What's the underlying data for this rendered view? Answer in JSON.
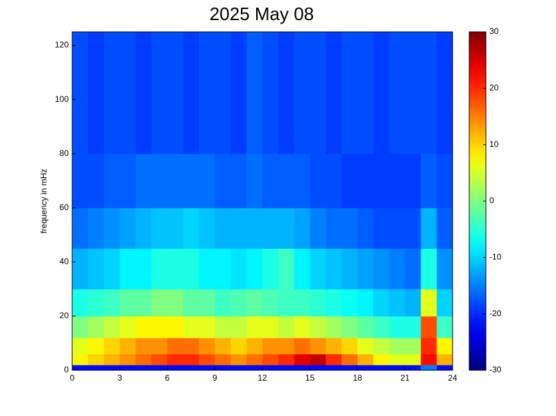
{
  "chart_data": {
    "type": "heatmap",
    "title": "2025 May 08",
    "y_label": "frequency in mHz",
    "xbins": [
      0,
      1,
      2,
      3,
      4,
      5,
      6,
      7,
      8,
      9,
      10,
      11,
      12,
      13,
      14,
      15,
      16,
      17,
      18,
      19,
      20,
      21,
      22,
      23,
      24
    ],
    "ybins": [
      0,
      2,
      6,
      12,
      20,
      30,
      45,
      60,
      80,
      125
    ],
    "z": [
      [
        -22,
        -22,
        -22,
        -22,
        -22,
        -22,
        -22,
        -22,
        -22,
        -22,
        -22,
        -22,
        -22,
        -22,
        -22,
        -22,
        -22,
        -22,
        -22,
        -22,
        -22,
        -22,
        -15,
        -22
      ],
      [
        8,
        10,
        12,
        14,
        16,
        18,
        20,
        20,
        18,
        16,
        14,
        16,
        18,
        20,
        24,
        26,
        20,
        16,
        12,
        8,
        6,
        6,
        22,
        12
      ],
      [
        6,
        8,
        10,
        12,
        14,
        14,
        16,
        16,
        14,
        12,
        10,
        12,
        14,
        14,
        16,
        14,
        12,
        10,
        6,
        4,
        2,
        2,
        20,
        8
      ],
      [
        0,
        2,
        4,
        6,
        8,
        8,
        8,
        6,
        6,
        4,
        4,
        6,
        6,
        4,
        6,
        4,
        2,
        0,
        -2,
        -4,
        -6,
        -6,
        18,
        -4
      ],
      [
        -6,
        -5,
        -4,
        -2,
        -2,
        0,
        0,
        -2,
        -2,
        -4,
        -3,
        -2,
        -3,
        -4,
        -4,
        -5,
        -6,
        -7,
        -8,
        -10,
        -11,
        -12,
        6,
        -10
      ],
      [
        -12,
        -11,
        -10,
        -8,
        -8,
        -6,
        -6,
        -6,
        -8,
        -8,
        -9,
        -8,
        -6,
        -4,
        -8,
        -10,
        -11,
        -12,
        -13,
        -14,
        -15,
        -16,
        -6,
        -14
      ],
      [
        -16,
        -15,
        -14,
        -13,
        -12,
        -11,
        -11,
        -10,
        -11,
        -12,
        -12,
        -12,
        -12,
        -12,
        -13,
        -15,
        -16,
        -16,
        -17,
        -18,
        -18,
        -18,
        -12,
        -17
      ],
      [
        -18,
        -18,
        -17,
        -17,
        -16,
        -16,
        -16,
        -16,
        -16,
        -17,
        -17,
        -16,
        -17,
        -17,
        -17,
        -18,
        -18,
        -19,
        -19,
        -19,
        -19,
        -19,
        -17,
        -18
      ],
      [
        -18,
        -19,
        -18,
        -18,
        -19,
        -18,
        -18,
        -19,
        -18,
        -18,
        -19,
        -17,
        -18,
        -19,
        -18,
        -18,
        -19,
        -18,
        -18,
        -19,
        -18,
        -18,
        -18,
        -19
      ]
    ],
    "xlim": [
      0,
      24
    ],
    "xticks": [
      0,
      3,
      6,
      9,
      12,
      15,
      18,
      21,
      24
    ],
    "ylim": [
      0,
      125
    ],
    "yticks": [
      0,
      20,
      40,
      60,
      80,
      100,
      120
    ],
    "clim": [
      -30,
      30
    ],
    "cticks": [
      -30,
      -20,
      -10,
      0,
      10,
      20,
      30
    ],
    "colormap": "jet"
  }
}
